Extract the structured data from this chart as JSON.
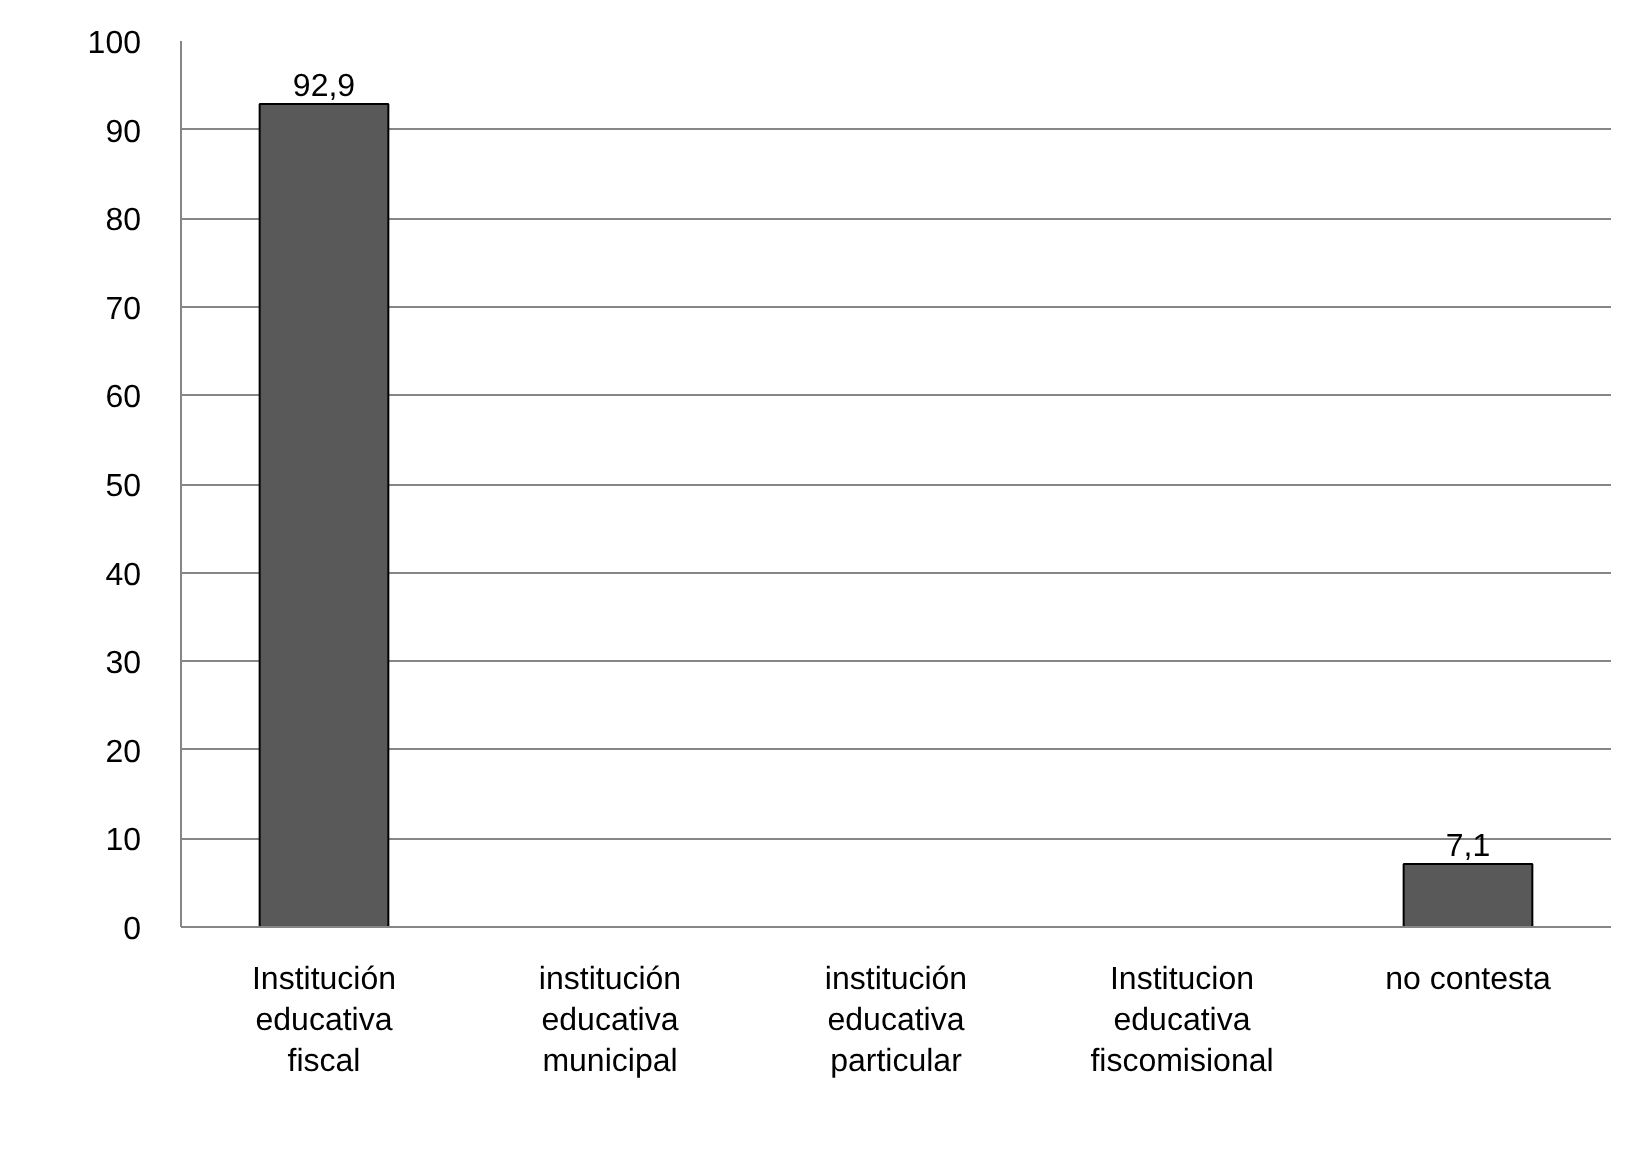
{
  "chart_data": {
    "type": "bar",
    "categories": [
      "Institución educativa fiscal",
      "institución educativa municipal",
      "institución educativa particular",
      "Institucion educativa fiscomisional",
      "no contesta"
    ],
    "values": [
      92.9,
      0,
      0,
      0,
      7.1
    ],
    "value_labels": [
      "92,9",
      null,
      null,
      null,
      "7,1"
    ],
    "color": "#595959",
    "ylim": [
      0,
      100
    ],
    "yticks": [
      0,
      10,
      20,
      30,
      40,
      50,
      60,
      70,
      80,
      90,
      100
    ],
    "grid": "y"
  }
}
